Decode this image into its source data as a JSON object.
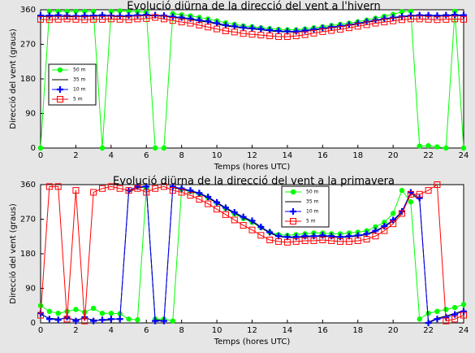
{
  "chart_data": [
    {
      "type": "line",
      "title": "Evolució diürna de la direcció del vent a l'hivern",
      "xlabel": "Temps (hores UTC)",
      "ylabel": "Direcció del vent (graus)",
      "x": [
        0,
        0.5,
        1,
        1.5,
        2,
        2.5,
        3,
        3.5,
        4,
        4.5,
        5,
        5.5,
        6,
        6.5,
        7,
        7.5,
        8,
        8.5,
        9,
        9.5,
        10,
        10.5,
        11,
        11.5,
        12,
        12.5,
        13,
        13.5,
        14,
        14.5,
        15,
        15.5,
        16,
        16.5,
        17,
        17.5,
        18,
        18.5,
        19,
        19.5,
        20,
        20.5,
        21,
        21.5,
        22,
        22.5,
        23,
        23.5,
        24
      ],
      "xlim": [
        0,
        24
      ],
      "xticks": [
        0,
        2,
        4,
        6,
        8,
        10,
        12,
        14,
        16,
        18,
        20,
        22,
        24
      ],
      "ylim": [
        0,
        360
      ],
      "yticks": [
        0,
        90,
        180,
        270,
        360
      ],
      "legend": "upper left",
      "series": [
        {
          "name": "50 m",
          "color": "#00ff00",
          "marker": "circle",
          "values": [
            0,
            356,
            356,
            356,
            356,
            356,
            356,
            0,
            356,
            357,
            356,
            355,
            354,
            0,
            0,
            350,
            347,
            344,
            340,
            336,
            331,
            326,
            322,
            318,
            316,
            313,
            311,
            309,
            308,
            308,
            310,
            313,
            316,
            319,
            322,
            325,
            329,
            333,
            338,
            343,
            348,
            355,
            356,
            5,
            6,
            3,
            0,
            356,
            0
          ]
        },
        {
          "name": "35 m",
          "color": "#000000",
          "marker": "none",
          "values": [
            342,
            343,
            343,
            342,
            342,
            343,
            343,
            344,
            343,
            342,
            343,
            344,
            345,
            344,
            343,
            340,
            338,
            335,
            331,
            328,
            323,
            318,
            315,
            312,
            310,
            308,
            305,
            303,
            302,
            302,
            304,
            307,
            310,
            313,
            316,
            319,
            323,
            327,
            331,
            335,
            338,
            341,
            343,
            344,
            344,
            343,
            344,
            345,
            344
          ]
        },
        {
          "name": "10 m",
          "color": "#0000ff",
          "marker": "plus",
          "values": [
            345,
            345,
            346,
            345,
            344,
            345,
            345,
            346,
            345,
            344,
            345,
            346,
            347,
            346,
            345,
            342,
            340,
            337,
            333,
            330,
            325,
            320,
            317,
            314,
            312,
            310,
            307,
            305,
            304,
            304,
            306,
            309,
            312,
            315,
            318,
            321,
            325,
            329,
            333,
            337,
            340,
            343,
            345,
            346,
            346,
            345,
            346,
            347,
            346
          ]
        },
        {
          "name": "5 m",
          "color": "#ff0000",
          "marker": "square",
          "values": [
            335,
            334,
            335,
            336,
            335,
            334,
            335,
            335,
            336,
            335,
            334,
            336,
            337,
            340,
            336,
            332,
            328,
            325,
            320,
            315,
            310,
            305,
            302,
            298,
            296,
            294,
            292,
            290,
            290,
            292,
            295,
            299,
            303,
            306,
            309,
            313,
            317,
            321,
            325,
            328,
            331,
            334,
            336,
            336,
            335,
            334,
            335,
            336,
            335
          ]
        }
      ]
    },
    {
      "type": "line",
      "title": "Evolució diürna de la direcció del vent a la primavera",
      "xlabel": "Temps (hores UTC)",
      "ylabel": "Direcció del vent (graus)",
      "x": [
        0,
        0.5,
        1,
        1.5,
        2,
        2.5,
        3,
        3.5,
        4,
        4.5,
        5,
        5.5,
        6,
        6.5,
        7,
        7.5,
        8,
        8.5,
        9,
        9.5,
        10,
        10.5,
        11,
        11.5,
        12,
        12.5,
        13,
        13.5,
        14,
        14.5,
        15,
        15.5,
        16,
        16.5,
        17,
        17.5,
        18,
        18.5,
        19,
        19.5,
        20,
        20.5,
        21,
        21.5,
        22,
        22.5,
        23,
        23.5,
        24
      ],
      "xlim": [
        0,
        24
      ],
      "xticks": [
        0,
        2,
        4,
        6,
        8,
        10,
        12,
        14,
        16,
        18,
        20,
        22,
        24
      ],
      "ylim": [
        0,
        360
      ],
      "yticks": [
        0,
        90,
        180,
        270,
        360
      ],
      "legend": "upper center",
      "series": [
        {
          "name": "50 m",
          "color": "#00ff00",
          "marker": "circle",
          "values": [
            45,
            30,
            25,
            30,
            35,
            28,
            38,
            25,
            25,
            24,
            10,
            8,
            350,
            10,
            10,
            5,
            348,
            342,
            336,
            326,
            312,
            298,
            284,
            272,
            262,
            248,
            236,
            230,
            228,
            230,
            232,
            234,
            234,
            232,
            232,
            234,
            236,
            240,
            250,
            262,
            285,
            345,
            315,
            10,
            25,
            30,
            35,
            40,
            48
          ]
        },
        {
          "name": "35 m",
          "color": "#000000",
          "marker": "none",
          "values": [
            22,
            12,
            10,
            12,
            8,
            12,
            8,
            6,
            8,
            12,
            340,
            352,
            354,
            8,
            6,
            352,
            348,
            343,
            336,
            326,
            312,
            298,
            286,
            274,
            264,
            248,
            234,
            225,
            222,
            222,
            224,
            225,
            226,
            224,
            222,
            224,
            226,
            230,
            238,
            250,
            265,
            288,
            338,
            320,
            2,
            12,
            18,
            25,
            32
          ]
        },
        {
          "name": "10 m",
          "color": "#0000ff",
          "marker": "plus",
          "values": [
            25,
            10,
            8,
            15,
            5,
            15,
            5,
            8,
            10,
            10,
            345,
            355,
            355,
            5,
            5,
            355,
            350,
            345,
            338,
            328,
            314,
            300,
            288,
            276,
            266,
            250,
            236,
            226,
            224,
            224,
            226,
            226,
            228,
            226,
            224,
            226,
            228,
            232,
            240,
            252,
            268,
            290,
            340,
            325,
            0,
            10,
            15,
            22,
            30
          ]
        },
        {
          "name": "5 m",
          "color": "#ff0000",
          "marker": "square",
          "values": [
            20,
            355,
            355,
            10,
            345,
            5,
            340,
            350,
            355,
            350,
            345,
            350,
            340,
            350,
            355,
            345,
            340,
            332,
            322,
            310,
            296,
            282,
            268,
            254,
            242,
            228,
            216,
            212,
            210,
            212,
            214,
            214,
            216,
            214,
            212,
            212,
            214,
            218,
            226,
            240,
            258,
            285,
            335,
            335,
            345,
            360,
            5,
            10,
            20
          ]
        }
      ]
    }
  ]
}
